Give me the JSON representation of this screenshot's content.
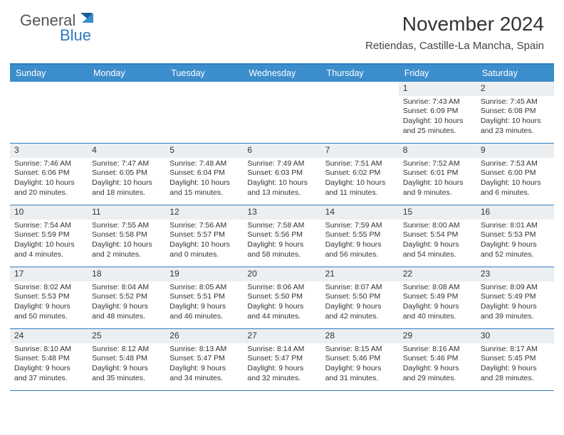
{
  "logo": {
    "text1": "General",
    "text2": "Blue"
  },
  "title": "November 2024",
  "location": "Retiendas, Castille-La Mancha, Spain",
  "colors": {
    "header_bar": "#3c8dcc",
    "border": "#2f7bbf",
    "daynum_bg": "#eceff1",
    "text": "#333333",
    "logo_gray": "#555555",
    "logo_blue": "#2f7bbf",
    "background": "#ffffff"
  },
  "day_headers": [
    "Sunday",
    "Monday",
    "Tuesday",
    "Wednesday",
    "Thursday",
    "Friday",
    "Saturday"
  ],
  "weeks": [
    [
      null,
      null,
      null,
      null,
      null,
      {
        "n": "1",
        "sr": "Sunrise: 7:43 AM",
        "ss": "Sunset: 6:09 PM",
        "dl1": "Daylight: 10 hours",
        "dl2": "and 25 minutes."
      },
      {
        "n": "2",
        "sr": "Sunrise: 7:45 AM",
        "ss": "Sunset: 6:08 PM",
        "dl1": "Daylight: 10 hours",
        "dl2": "and 23 minutes."
      }
    ],
    [
      {
        "n": "3",
        "sr": "Sunrise: 7:46 AM",
        "ss": "Sunset: 6:06 PM",
        "dl1": "Daylight: 10 hours",
        "dl2": "and 20 minutes."
      },
      {
        "n": "4",
        "sr": "Sunrise: 7:47 AM",
        "ss": "Sunset: 6:05 PM",
        "dl1": "Daylight: 10 hours",
        "dl2": "and 18 minutes."
      },
      {
        "n": "5",
        "sr": "Sunrise: 7:48 AM",
        "ss": "Sunset: 6:04 PM",
        "dl1": "Daylight: 10 hours",
        "dl2": "and 15 minutes."
      },
      {
        "n": "6",
        "sr": "Sunrise: 7:49 AM",
        "ss": "Sunset: 6:03 PM",
        "dl1": "Daylight: 10 hours",
        "dl2": "and 13 minutes."
      },
      {
        "n": "7",
        "sr": "Sunrise: 7:51 AM",
        "ss": "Sunset: 6:02 PM",
        "dl1": "Daylight: 10 hours",
        "dl2": "and 11 minutes."
      },
      {
        "n": "8",
        "sr": "Sunrise: 7:52 AM",
        "ss": "Sunset: 6:01 PM",
        "dl1": "Daylight: 10 hours",
        "dl2": "and 9 minutes."
      },
      {
        "n": "9",
        "sr": "Sunrise: 7:53 AM",
        "ss": "Sunset: 6:00 PM",
        "dl1": "Daylight: 10 hours",
        "dl2": "and 6 minutes."
      }
    ],
    [
      {
        "n": "10",
        "sr": "Sunrise: 7:54 AM",
        "ss": "Sunset: 5:59 PM",
        "dl1": "Daylight: 10 hours",
        "dl2": "and 4 minutes."
      },
      {
        "n": "11",
        "sr": "Sunrise: 7:55 AM",
        "ss": "Sunset: 5:58 PM",
        "dl1": "Daylight: 10 hours",
        "dl2": "and 2 minutes."
      },
      {
        "n": "12",
        "sr": "Sunrise: 7:56 AM",
        "ss": "Sunset: 5:57 PM",
        "dl1": "Daylight: 10 hours",
        "dl2": "and 0 minutes."
      },
      {
        "n": "13",
        "sr": "Sunrise: 7:58 AM",
        "ss": "Sunset: 5:56 PM",
        "dl1": "Daylight: 9 hours",
        "dl2": "and 58 minutes."
      },
      {
        "n": "14",
        "sr": "Sunrise: 7:59 AM",
        "ss": "Sunset: 5:55 PM",
        "dl1": "Daylight: 9 hours",
        "dl2": "and 56 minutes."
      },
      {
        "n": "15",
        "sr": "Sunrise: 8:00 AM",
        "ss": "Sunset: 5:54 PM",
        "dl1": "Daylight: 9 hours",
        "dl2": "and 54 minutes."
      },
      {
        "n": "16",
        "sr": "Sunrise: 8:01 AM",
        "ss": "Sunset: 5:53 PM",
        "dl1": "Daylight: 9 hours",
        "dl2": "and 52 minutes."
      }
    ],
    [
      {
        "n": "17",
        "sr": "Sunrise: 8:02 AM",
        "ss": "Sunset: 5:53 PM",
        "dl1": "Daylight: 9 hours",
        "dl2": "and 50 minutes."
      },
      {
        "n": "18",
        "sr": "Sunrise: 8:04 AM",
        "ss": "Sunset: 5:52 PM",
        "dl1": "Daylight: 9 hours",
        "dl2": "and 48 minutes."
      },
      {
        "n": "19",
        "sr": "Sunrise: 8:05 AM",
        "ss": "Sunset: 5:51 PM",
        "dl1": "Daylight: 9 hours",
        "dl2": "and 46 minutes."
      },
      {
        "n": "20",
        "sr": "Sunrise: 8:06 AM",
        "ss": "Sunset: 5:50 PM",
        "dl1": "Daylight: 9 hours",
        "dl2": "and 44 minutes."
      },
      {
        "n": "21",
        "sr": "Sunrise: 8:07 AM",
        "ss": "Sunset: 5:50 PM",
        "dl1": "Daylight: 9 hours",
        "dl2": "and 42 minutes."
      },
      {
        "n": "22",
        "sr": "Sunrise: 8:08 AM",
        "ss": "Sunset: 5:49 PM",
        "dl1": "Daylight: 9 hours",
        "dl2": "and 40 minutes."
      },
      {
        "n": "23",
        "sr": "Sunrise: 8:09 AM",
        "ss": "Sunset: 5:49 PM",
        "dl1": "Daylight: 9 hours",
        "dl2": "and 39 minutes."
      }
    ],
    [
      {
        "n": "24",
        "sr": "Sunrise: 8:10 AM",
        "ss": "Sunset: 5:48 PM",
        "dl1": "Daylight: 9 hours",
        "dl2": "and 37 minutes."
      },
      {
        "n": "25",
        "sr": "Sunrise: 8:12 AM",
        "ss": "Sunset: 5:48 PM",
        "dl1": "Daylight: 9 hours",
        "dl2": "and 35 minutes."
      },
      {
        "n": "26",
        "sr": "Sunrise: 8:13 AM",
        "ss": "Sunset: 5:47 PM",
        "dl1": "Daylight: 9 hours",
        "dl2": "and 34 minutes."
      },
      {
        "n": "27",
        "sr": "Sunrise: 8:14 AM",
        "ss": "Sunset: 5:47 PM",
        "dl1": "Daylight: 9 hours",
        "dl2": "and 32 minutes."
      },
      {
        "n": "28",
        "sr": "Sunrise: 8:15 AM",
        "ss": "Sunset: 5:46 PM",
        "dl1": "Daylight: 9 hours",
        "dl2": "and 31 minutes."
      },
      {
        "n": "29",
        "sr": "Sunrise: 8:16 AM",
        "ss": "Sunset: 5:46 PM",
        "dl1": "Daylight: 9 hours",
        "dl2": "and 29 minutes."
      },
      {
        "n": "30",
        "sr": "Sunrise: 8:17 AM",
        "ss": "Sunset: 5:45 PM",
        "dl1": "Daylight: 9 hours",
        "dl2": "and 28 minutes."
      }
    ]
  ]
}
